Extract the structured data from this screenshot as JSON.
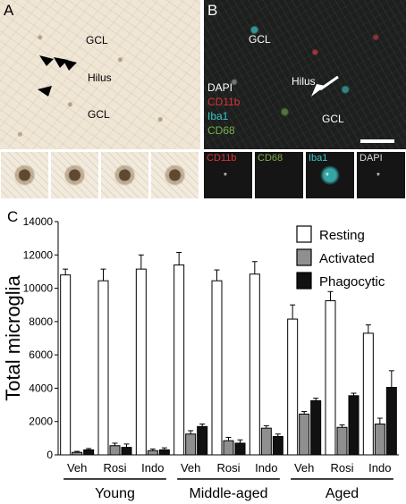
{
  "panels": {
    "a": {
      "letter": "A",
      "labels": {
        "gcl_top": "GCL",
        "hilus": "Hilus",
        "gcl_bottom": "GCL"
      }
    },
    "b": {
      "letter": "B",
      "labels": {
        "gcl_top": "GCL",
        "hilus": "Hilus",
        "gcl_bottom": "GCL"
      },
      "legend": [
        "DAPI",
        "CD11b",
        "Iba1",
        "CD68"
      ],
      "channels": [
        "CD11b",
        "CD68",
        "Iba1",
        "DAPI"
      ],
      "marker": "*"
    },
    "c": {
      "letter": "C"
    }
  },
  "colors": {
    "dapi": "#ffffff",
    "cd11b": "#e0323c",
    "iba1": "#3cc8c8",
    "cd68": "#7cb04a",
    "resting": "#ffffff",
    "activated": "#8f8f8f",
    "phagocytic": "#111111"
  },
  "chart_data": {
    "type": "bar",
    "ylabel": "Total microglia",
    "xlabel": "",
    "ylim": [
      0,
      14000
    ],
    "yticks": [
      0,
      2000,
      4000,
      6000,
      8000,
      10000,
      12000,
      14000
    ],
    "categories": [
      "Veh",
      "Rosi",
      "Indo",
      "Veh",
      "Rosi",
      "Indo",
      "Veh",
      "Rosi",
      "Indo"
    ],
    "groups": [
      {
        "name": "Young",
        "categories": [
          "Veh",
          "Rosi",
          "Indo"
        ]
      },
      {
        "name": "Middle-aged",
        "categories": [
          "Veh",
          "Rosi",
          "Indo"
        ]
      },
      {
        "name": "Aged",
        "categories": [
          "Veh",
          "Rosi",
          "Indo"
        ]
      }
    ],
    "series": [
      {
        "name": "Resting",
        "values": [
          10800,
          10450,
          11150,
          11400,
          10450,
          10850,
          8150,
          9250,
          7300
        ],
        "errors": [
          350,
          700,
          850,
          750,
          650,
          750,
          850,
          550,
          500
        ]
      },
      {
        "name": "Activated",
        "values": [
          150,
          550,
          250,
          1250,
          850,
          1600,
          2450,
          1650,
          1850
        ],
        "errors": [
          60,
          150,
          100,
          200,
          200,
          150,
          150,
          150,
          350
        ]
      },
      {
        "name": "Phagocytic",
        "values": [
          300,
          450,
          300,
          1700,
          700,
          1100,
          3250,
          3550,
          4050
        ],
        "errors": [
          80,
          200,
          120,
          150,
          200,
          150,
          150,
          150,
          1000
        ]
      }
    ],
    "legend_position": "top-right",
    "grid": false
  }
}
